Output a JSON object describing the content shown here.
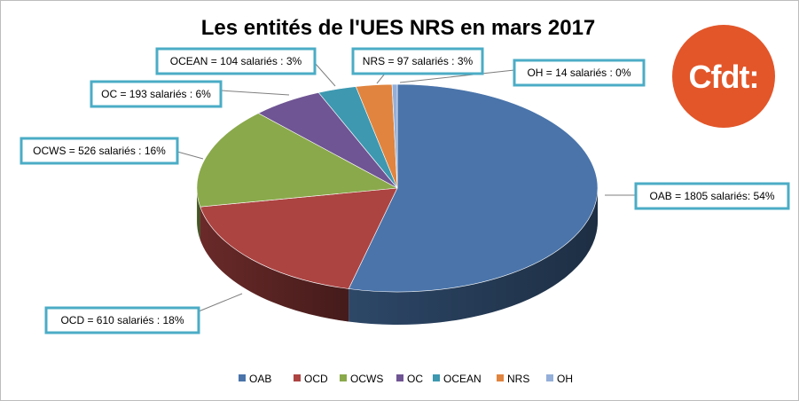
{
  "chart_data": {
    "type": "pie",
    "title": "Les entités de l'UES NRS en mars 2017",
    "unit": "salariés",
    "categories": [
      "OAB",
      "OCD",
      "OCWS",
      "OC",
      "OCEAN",
      "NRS",
      "OH"
    ],
    "values": [
      1805,
      610,
      526,
      193,
      104,
      97,
      14
    ],
    "percent_labels": [
      "54%",
      "18%",
      "16%",
      "6%",
      "3%",
      "3%",
      "0%"
    ],
    "data_labels": [
      "OAB = 1805  salariés: 54%",
      "OCD = 610  salariés : 18%",
      "OCWS = 526  salariés : 16%",
      "OC = 193  salariés : 6%",
      "OCEAN = 104  salariés : 3%",
      "NRS = 97  salariés : 3%",
      "OH = 14  salariés : 0%"
    ],
    "colors": [
      "#4a74aa",
      "#ac4442",
      "#8aa94b",
      "#6f5593",
      "#3d98b0",
      "#e0843f",
      "#94afd9"
    ],
    "legend": {
      "placement": "bottom",
      "entries": [
        "OAB",
        "OCD",
        "OCWS",
        "OC",
        "OCEAN",
        "NRS",
        "OH"
      ]
    },
    "style": "3d-exploded-none"
  },
  "logo": {
    "text": "Cfdt:",
    "color": "#e2562a"
  },
  "callout_border_color": "#4bacc6"
}
